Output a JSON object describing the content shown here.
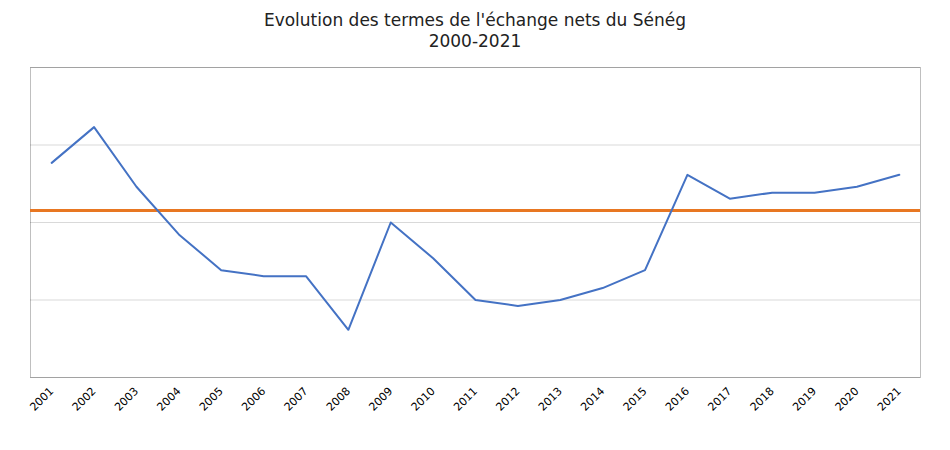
{
  "chart_data": {
    "type": "line",
    "title": "Evolution des termes de l'échange nets du Sénég\n2000-2021",
    "x": [
      2001,
      2002,
      2003,
      2004,
      2005,
      2006,
      2007,
      2008,
      2009,
      2010,
      2011,
      2012,
      2013,
      2014,
      2015,
      2016,
      2017,
      2018,
      2019,
      2020,
      2021
    ],
    "values": [
      96,
      99,
      94,
      90,
      87,
      86.5,
      86.5,
      82,
      91,
      88,
      84.5,
      84,
      84.5,
      85.5,
      87,
      95,
      93,
      93.5,
      93.5,
      94,
      95
    ],
    "color": "#4472C4",
    "reference_line": {
      "value": 92,
      "color": "#E87722"
    },
    "xlim": [
      2000.5,
      2021.5
    ],
    "xticks": [
      2001,
      2002,
      2003,
      2004,
      2005,
      2006,
      2007,
      2008,
      2009,
      2010,
      2011,
      2012,
      2013,
      2014,
      2015,
      2016,
      2017,
      2018,
      2019,
      2020,
      2021
    ],
    "ylim": [
      78,
      104
    ],
    "yticks": [
      78,
      84.5,
      91,
      97.5,
      104
    ],
    "grid": true,
    "tick_labels": "x"
  }
}
